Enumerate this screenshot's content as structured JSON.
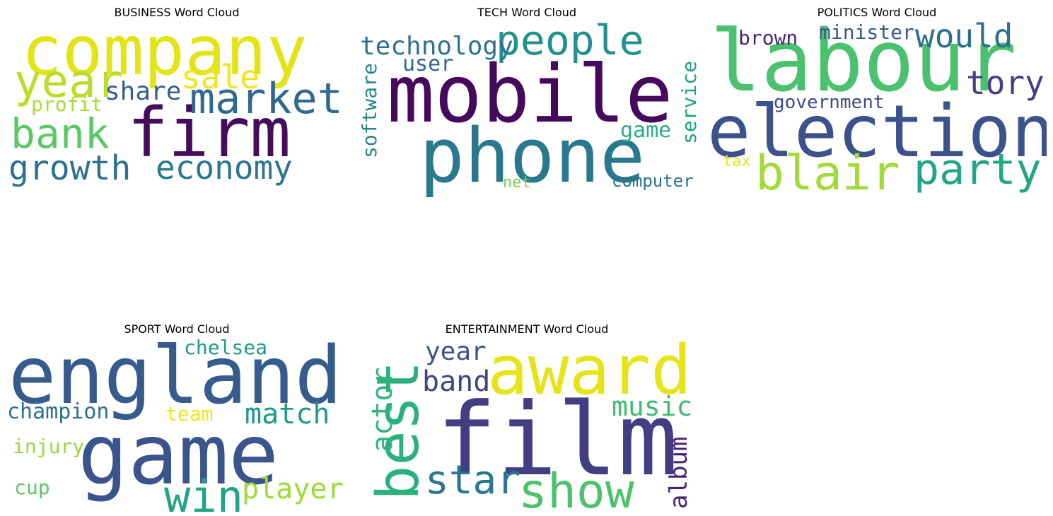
{
  "chart_data": [
    {
      "type": "wordcloud",
      "title": "BUSINESS Word Cloud",
      "words": [
        {
          "text": "company",
          "color": "#e3e418"
        },
        {
          "text": "firm",
          "color": "#440c5a"
        },
        {
          "text": "market",
          "color": "#31688e"
        },
        {
          "text": "year",
          "color": "#bade28"
        },
        {
          "text": "sale",
          "color": "#f1e51d"
        },
        {
          "text": "bank",
          "color": "#5ac864"
        },
        {
          "text": "growth",
          "color": "#2c728e"
        },
        {
          "text": "economy",
          "color": "#2a788e"
        },
        {
          "text": "share",
          "color": "#355f8d"
        },
        {
          "text": "profit",
          "color": "#a5db36"
        }
      ]
    },
    {
      "type": "wordcloud",
      "title": "TECH Word Cloud",
      "words": [
        {
          "text": "mobile",
          "color": "#450a5c"
        },
        {
          "text": "phone",
          "color": "#2a788e"
        },
        {
          "text": "people",
          "color": "#21918c"
        },
        {
          "text": "technology",
          "color": "#2c728e"
        },
        {
          "text": "user",
          "color": "#33638d"
        },
        {
          "text": "software",
          "color": "#25858e"
        },
        {
          "text": "service",
          "color": "#1fa187"
        },
        {
          "text": "game",
          "color": "#27ad81"
        },
        {
          "text": "computer",
          "color": "#2c718e"
        },
        {
          "text": "net",
          "color": "#7ad151"
        }
      ]
    },
    {
      "type": "wordcloud",
      "title": "POLITICS Word Cloud",
      "words": [
        {
          "text": "labour",
          "color": "#4ac16d"
        },
        {
          "text": "election",
          "color": "#3b528b"
        },
        {
          "text": "blair",
          "color": "#a2da37"
        },
        {
          "text": "party",
          "color": "#21a685"
        },
        {
          "text": "would",
          "color": "#2d708e"
        },
        {
          "text": "tory",
          "color": "#433e85"
        },
        {
          "text": "minister",
          "color": "#38598c"
        },
        {
          "text": "brown",
          "color": "#482677"
        },
        {
          "text": "government",
          "color": "#3e4a89"
        },
        {
          "text": "tax",
          "color": "#e7e419"
        }
      ]
    },
    {
      "type": "wordcloud",
      "title": "SPORT Word Cloud",
      "words": [
        {
          "text": "england",
          "color": "#365c8d"
        },
        {
          "text": "game",
          "color": "#39558c"
        },
        {
          "text": "win",
          "color": "#20a486"
        },
        {
          "text": "match",
          "color": "#1f9a8a"
        },
        {
          "text": "player",
          "color": "#a0da39"
        },
        {
          "text": "chelsea",
          "color": "#1e9b8a"
        },
        {
          "text": "champion",
          "color": "#2d718e"
        },
        {
          "text": "team",
          "color": "#f2e51d"
        },
        {
          "text": "injury",
          "color": "#9dd93b"
        },
        {
          "text": "cup",
          "color": "#5cc863"
        }
      ]
    },
    {
      "type": "wordcloud",
      "title": "ENTERTAINMENT Word Cloud",
      "words": [
        {
          "text": "film",
          "color": "#433d84"
        },
        {
          "text": "award",
          "color": "#e5e419"
        },
        {
          "text": "best",
          "color": "#2ab07f"
        },
        {
          "text": "show",
          "color": "#4cc26c"
        },
        {
          "text": "star",
          "color": "#2a768e"
        },
        {
          "text": "band",
          "color": "#414487"
        },
        {
          "text": "year",
          "color": "#3b528b"
        },
        {
          "text": "music",
          "color": "#3dbc74"
        },
        {
          "text": "actor",
          "color": "#2fb47c"
        },
        {
          "text": "album",
          "color": "#482173"
        }
      ]
    }
  ]
}
